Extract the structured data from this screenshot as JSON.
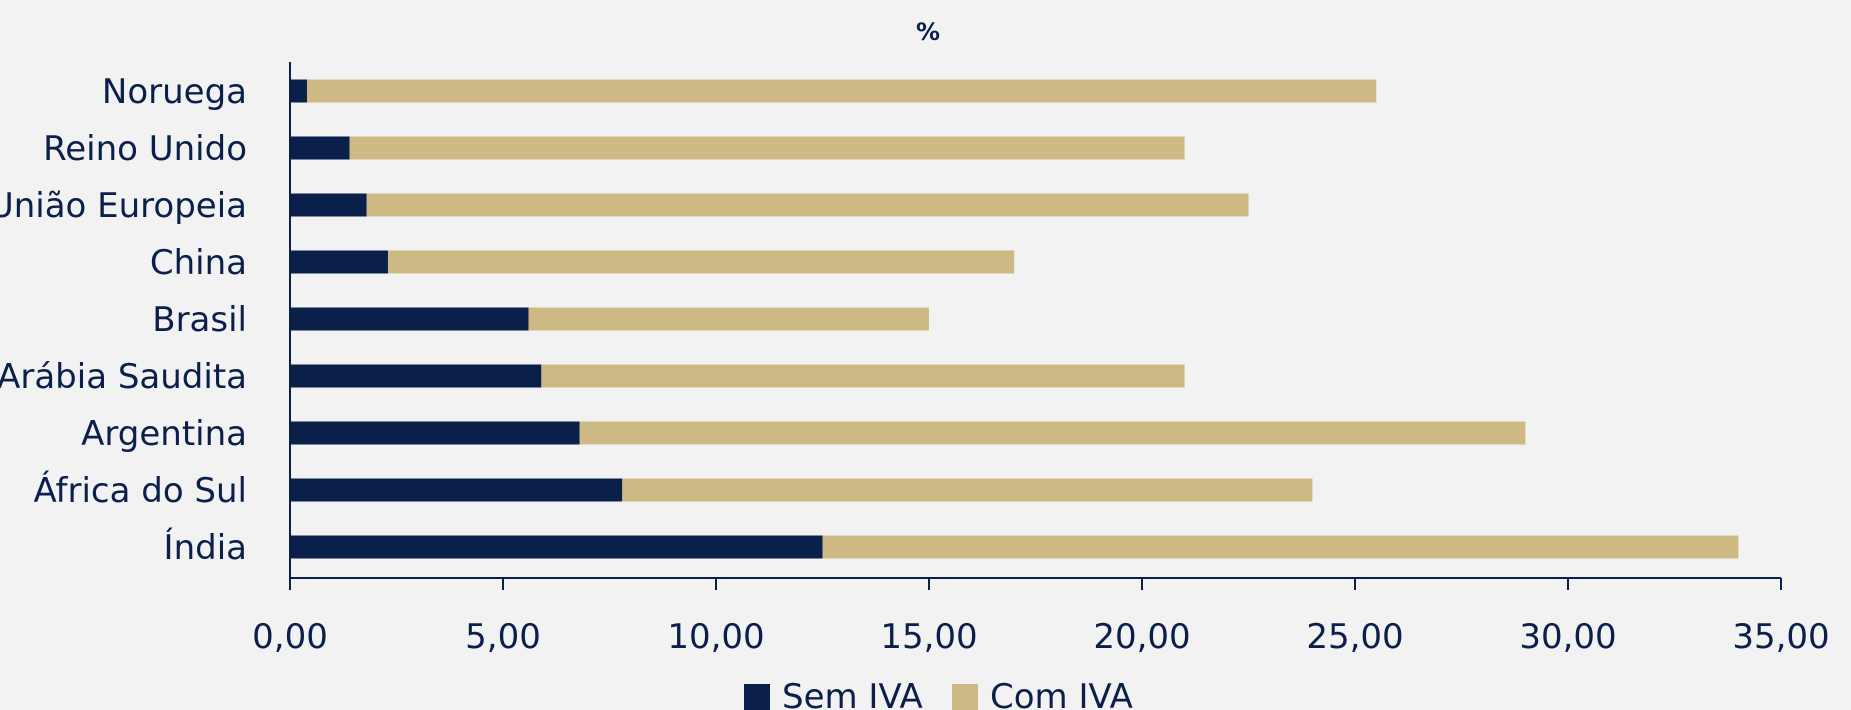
{
  "chart_data": {
    "type": "bar",
    "orientation": "horizontal",
    "stacked": true,
    "title": "",
    "subtitle": "%",
    "categories": [
      "Noruega",
      "Reino Unido",
      "União Europeia",
      "China",
      "Brasil",
      "Arábia Saudita",
      "Argentina",
      "África do Sul",
      "Índia"
    ],
    "series": [
      {
        "name": "Sem IVA",
        "color": "#0b1f4b",
        "values": [
          0.4,
          1.4,
          1.8,
          2.3,
          5.6,
          5.9,
          6.8,
          7.8,
          12.5
        ]
      },
      {
        "name": "Com IVA",
        "color": "#cdb983",
        "values": [
          25.1,
          19.6,
          20.7,
          14.7,
          9.4,
          15.1,
          22.2,
          16.2,
          21.5
        ]
      }
    ],
    "xlim": [
      0,
      35
    ],
    "x_ticks": [
      0,
      5,
      10,
      15,
      20,
      25,
      30,
      35
    ],
    "x_tick_labels": [
      "0,00",
      "5,00",
      "10,00",
      "15,00",
      "20,00",
      "25,00",
      "30,00",
      "35,00"
    ],
    "grid": false,
    "legend_position": "bottom-center"
  }
}
